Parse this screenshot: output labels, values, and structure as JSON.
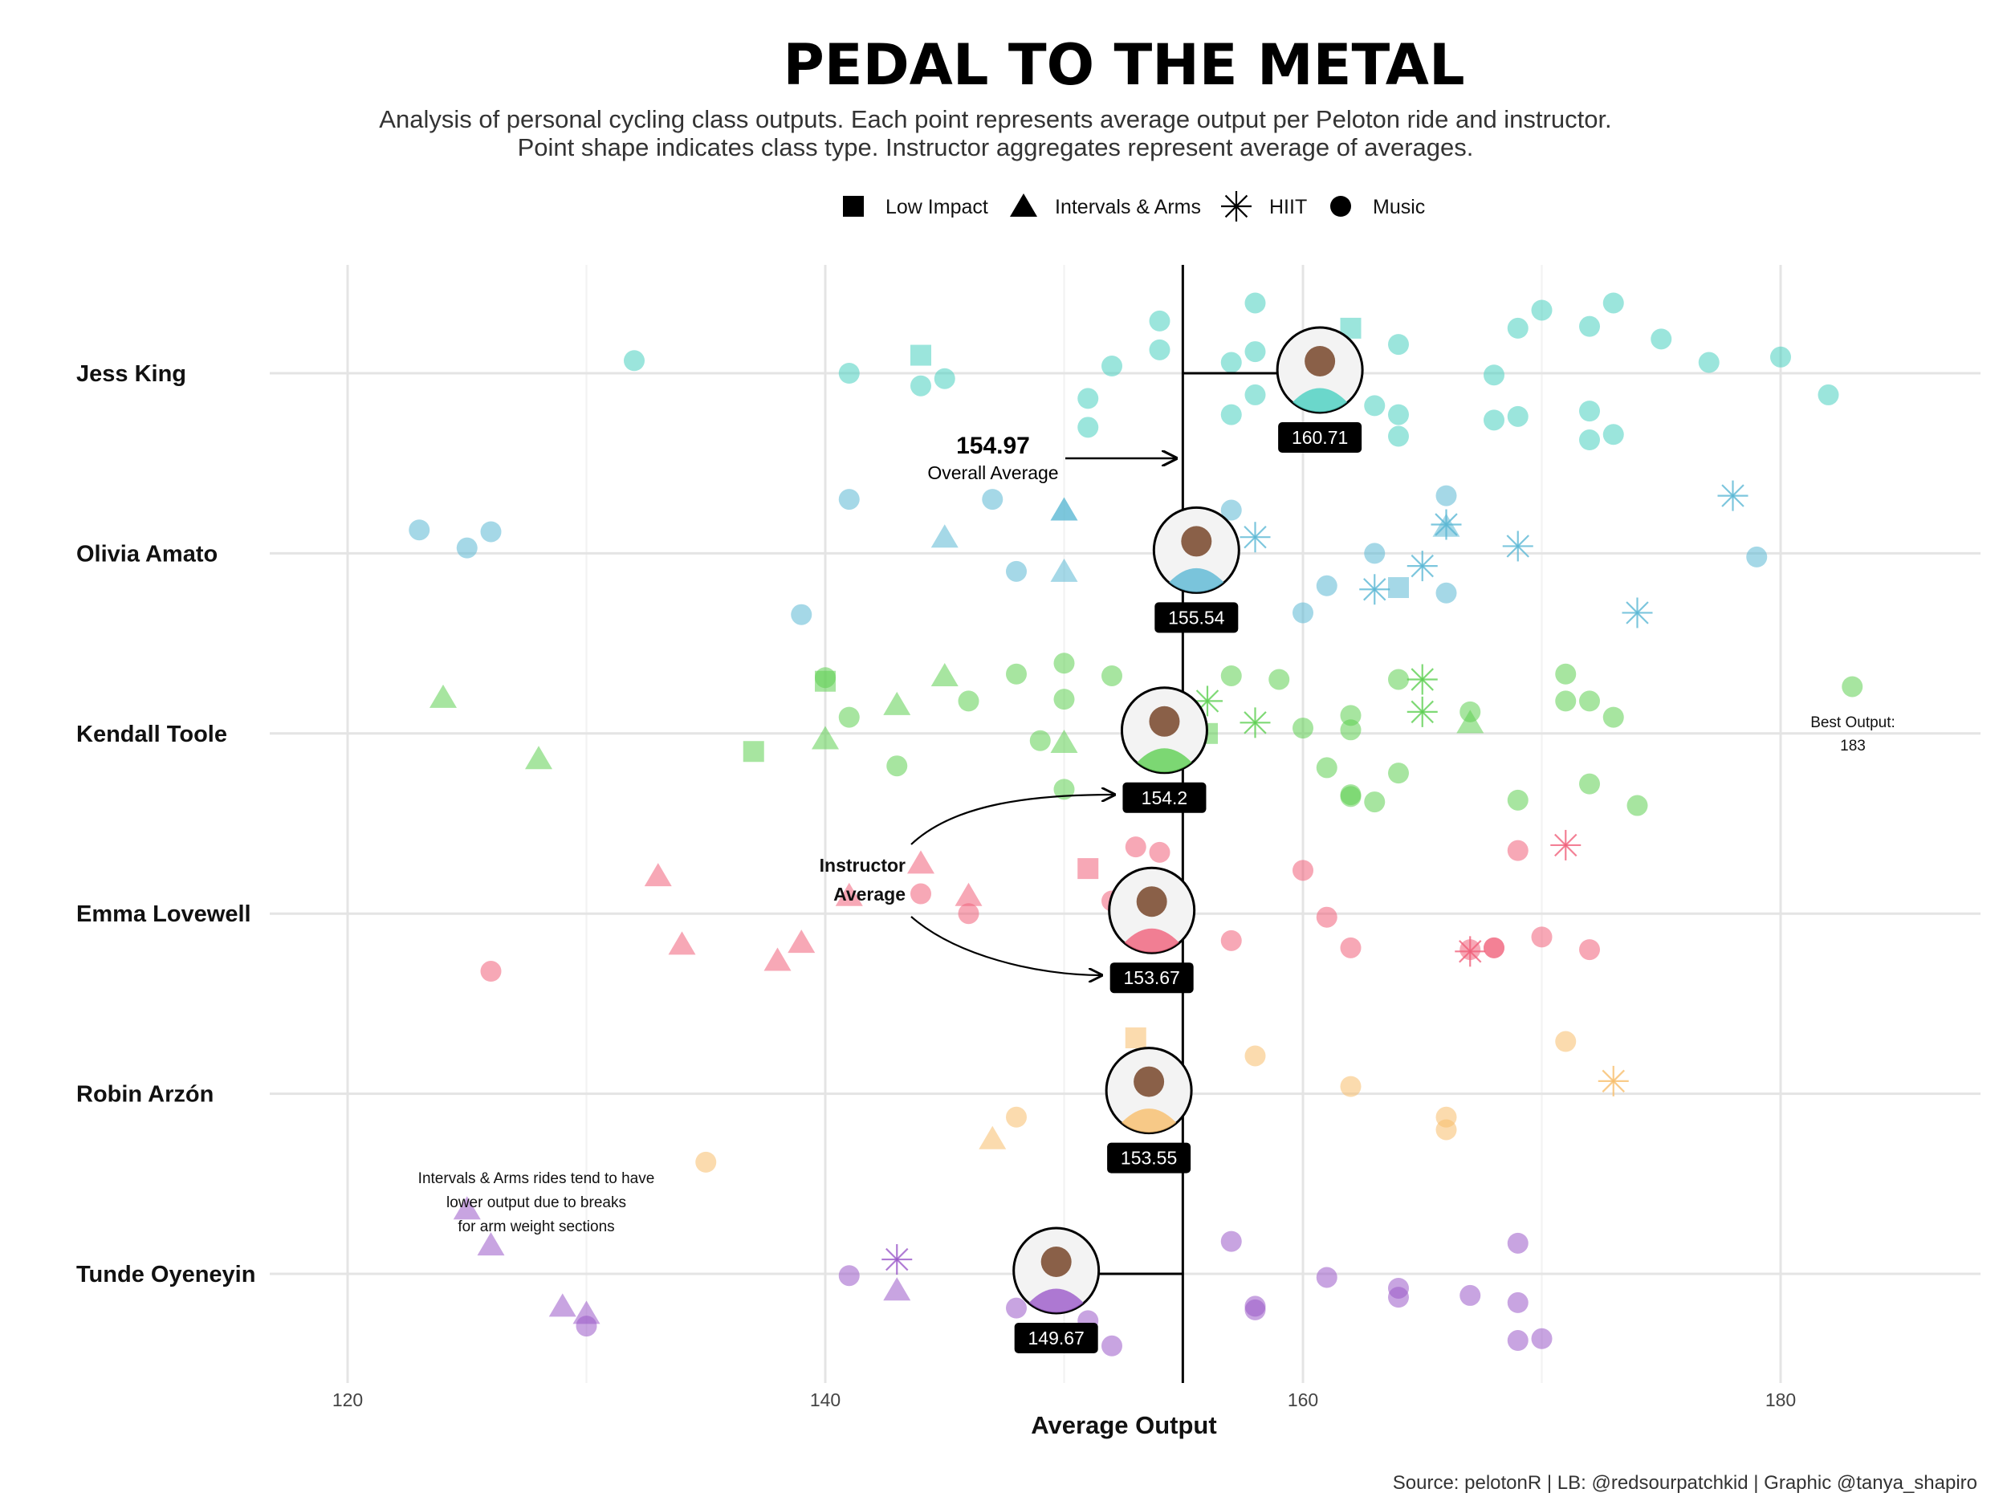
{
  "chart_data": {
    "type": "scatter",
    "title": "PEDAL TO THE METAL",
    "subtitle_lines": [
      "Analysis of personal cycling class outputs. Each point represents average output per Peloton ride and instructor.",
      "Point shape indicates class type. Instructor aggregates represent average of averages."
    ],
    "xlabel": "Average Output",
    "xlim": [
      115,
      189
    ],
    "x_ticks": [
      120,
      140,
      160,
      180
    ],
    "grid": true,
    "legend_position": "top",
    "legend": [
      {
        "shape": "square",
        "label": "Low Impact"
      },
      {
        "shape": "triangle",
        "label": "Intervals & Arms"
      },
      {
        "shape": "asterisk",
        "label": "HIIT"
      },
      {
        "shape": "circle",
        "label": "Music"
      }
    ],
    "overall_average": {
      "value": 154.97,
      "value_label": "154.97",
      "label": "Overall Average"
    },
    "instructor_note": [
      "Instructor",
      "Average"
    ],
    "best_output": {
      "label": "Best Output:",
      "value": "183"
    },
    "annotation": [
      "Intervals & Arms rides tend to have",
      "lower output due to breaks",
      "for arm weight sections"
    ],
    "caption": "Source: pelotonR | LB: @redsourpatchkid | Graphic @tanya_shapiro",
    "series": [
      {
        "name": "Jess King",
        "color": "#48CFC0",
        "avg": 160.71,
        "avg_label": "160.71",
        "points": [
          [
            132,
            0.07,
            "circle"
          ],
          [
            141,
            0,
            "circle"
          ],
          [
            144,
            0.1,
            "square"
          ],
          [
            144,
            -0.07,
            "circle"
          ],
          [
            145,
            -0.03,
            "circle"
          ],
          [
            151,
            -0.14,
            "circle"
          ],
          [
            151,
            -0.3,
            "circle"
          ],
          [
            152,
            0.04,
            "circle"
          ],
          [
            154,
            0.29,
            "circle"
          ],
          [
            154,
            0.13,
            "circle"
          ],
          [
            157,
            0.06,
            "circle"
          ],
          [
            157,
            -0.23,
            "circle"
          ],
          [
            158,
            0.39,
            "circle"
          ],
          [
            158,
            0.12,
            "circle"
          ],
          [
            158,
            -0.12,
            "circle"
          ],
          [
            162,
            0.25,
            "square"
          ],
          [
            163,
            -0.18,
            "circle"
          ],
          [
            164,
            0.16,
            "circle"
          ],
          [
            164,
            -0.23,
            "circle"
          ],
          [
            164,
            -0.35,
            "circle"
          ],
          [
            168,
            -0.01,
            "circle"
          ],
          [
            168,
            -0.26,
            "circle"
          ],
          [
            169,
            0.25,
            "circle"
          ],
          [
            169,
            -0.24,
            "circle"
          ],
          [
            170,
            0.35,
            "circle"
          ],
          [
            172,
            0.26,
            "circle"
          ],
          [
            172,
            -0.21,
            "circle"
          ],
          [
            172,
            -0.37,
            "circle"
          ],
          [
            173,
            0.39,
            "circle"
          ],
          [
            173,
            -0.34,
            "circle"
          ],
          [
            175,
            0.19,
            "circle"
          ],
          [
            177,
            0.06,
            "circle"
          ],
          [
            180,
            0.09,
            "circle"
          ],
          [
            182,
            -0.12,
            "circle"
          ]
        ]
      },
      {
        "name": "Olivia Amato",
        "color": "#5BB8D4",
        "avg": 155.54,
        "avg_label": "155.54",
        "points": [
          [
            123,
            0.13,
            "circle"
          ],
          [
            125,
            0.03,
            "circle"
          ],
          [
            126,
            0.12,
            "circle"
          ],
          [
            139,
            -0.34,
            "circle"
          ],
          [
            141,
            0.3,
            "circle"
          ],
          [
            145,
            0.09,
            "triangle"
          ],
          [
            147,
            0.3,
            "circle"
          ],
          [
            148,
            -0.1,
            "circle"
          ],
          [
            150,
            0.24,
            "triangle"
          ],
          [
            150,
            0.24,
            "triangle"
          ],
          [
            150,
            -0.1,
            "triangle"
          ],
          [
            157,
            0.24,
            "circle"
          ],
          [
            158,
            0.09,
            "asterisk"
          ],
          [
            160,
            -0.33,
            "circle"
          ],
          [
            161,
            -0.18,
            "circle"
          ],
          [
            163,
            0,
            "circle"
          ],
          [
            163,
            -0.2,
            "asterisk"
          ],
          [
            164,
            -0.19,
            "square"
          ],
          [
            165,
            -0.07,
            "asterisk"
          ],
          [
            166,
            0.32,
            "circle"
          ],
          [
            166,
            0.16,
            "asterisk"
          ],
          [
            166,
            0.15,
            "triangle"
          ],
          [
            166,
            -0.22,
            "circle"
          ],
          [
            169,
            0.04,
            "asterisk"
          ],
          [
            174,
            -0.33,
            "asterisk"
          ],
          [
            178,
            0.32,
            "asterisk"
          ],
          [
            179,
            -0.02,
            "circle"
          ]
        ]
      },
      {
        "name": "Kendall Toole",
        "color": "#5ED052",
        "avg": 154.2,
        "avg_label": "154.2",
        "points": [
          [
            124,
            0.2,
            "triangle"
          ],
          [
            128,
            -0.14,
            "triangle"
          ],
          [
            137,
            -0.1,
            "square"
          ],
          [
            140,
            0.31,
            "circle"
          ],
          [
            140,
            0.29,
            "square"
          ],
          [
            140,
            -0.03,
            "triangle"
          ],
          [
            141,
            0.09,
            "circle"
          ],
          [
            143,
            0.16,
            "triangle"
          ],
          [
            143,
            -0.18,
            "circle"
          ],
          [
            145,
            0.32,
            "triangle"
          ],
          [
            146,
            0.18,
            "circle"
          ],
          [
            148,
            0.33,
            "circle"
          ],
          [
            149,
            -0.04,
            "circle"
          ],
          [
            150,
            0.39,
            "circle"
          ],
          [
            150,
            0.19,
            "circle"
          ],
          [
            150,
            -0.05,
            "triangle"
          ],
          [
            150,
            -0.31,
            "circle"
          ],
          [
            152,
            0.32,
            "circle"
          ],
          [
            156,
            0.18,
            "asterisk"
          ],
          [
            156,
            0,
            "square"
          ],
          [
            157,
            0.32,
            "circle"
          ],
          [
            158,
            0.06,
            "asterisk"
          ],
          [
            159,
            0.3,
            "circle"
          ],
          [
            160,
            0.03,
            "circle"
          ],
          [
            161,
            -0.19,
            "circle"
          ],
          [
            162,
            0.1,
            "circle"
          ],
          [
            162,
            0.02,
            "circle"
          ],
          [
            162,
            -0.34,
            "circle"
          ],
          [
            162,
            -0.35,
            "circle"
          ],
          [
            163,
            -0.38,
            "circle"
          ],
          [
            164,
            0.3,
            "circle"
          ],
          [
            164,
            -0.22,
            "circle"
          ],
          [
            165,
            0.3,
            "asterisk"
          ],
          [
            165,
            0.12,
            "asterisk"
          ],
          [
            167,
            0.12,
            "circle"
          ],
          [
            167,
            0.06,
            "triangle"
          ],
          [
            169,
            -0.37,
            "circle"
          ],
          [
            171,
            0.33,
            "circle"
          ],
          [
            171,
            0.18,
            "circle"
          ],
          [
            172,
            0.18,
            "circle"
          ],
          [
            172,
            -0.28,
            "circle"
          ],
          [
            173,
            0.09,
            "circle"
          ],
          [
            174,
            -0.4,
            "circle"
          ],
          [
            183,
            0.26,
            "circle"
          ]
        ]
      },
      {
        "name": "Emma Lovewell",
        "color": "#F0607A",
        "avg": 153.67,
        "avg_label": "153.67",
        "points": [
          [
            126,
            -0.32,
            "circle"
          ],
          [
            133,
            0.21,
            "triangle"
          ],
          [
            134,
            -0.17,
            "triangle"
          ],
          [
            138,
            -0.26,
            "triangle"
          ],
          [
            139,
            -0.16,
            "triangle"
          ],
          [
            141,
            0.1,
            "triangle"
          ],
          [
            144,
            0.28,
            "triangle"
          ],
          [
            144,
            0.11,
            "circle"
          ],
          [
            146,
            0.1,
            "triangle"
          ],
          [
            146,
            0,
            "circle"
          ],
          [
            151,
            0.25,
            "square"
          ],
          [
            152,
            0.07,
            "circle"
          ],
          [
            153,
            0.37,
            "circle"
          ],
          [
            154,
            0.34,
            "circle"
          ],
          [
            157,
            -0.15,
            "circle"
          ],
          [
            160,
            0.24,
            "circle"
          ],
          [
            161,
            -0.02,
            "circle"
          ],
          [
            162,
            -0.19,
            "circle"
          ],
          [
            167,
            -0.21,
            "asterisk"
          ],
          [
            167,
            -0.2,
            "circle"
          ],
          [
            168,
            -0.19,
            "circle"
          ],
          [
            168,
            -0.19,
            "circle"
          ],
          [
            169,
            0.35,
            "circle"
          ],
          [
            170,
            -0.13,
            "circle"
          ],
          [
            171,
            0.38,
            "asterisk"
          ],
          [
            172,
            -0.2,
            "circle"
          ]
        ]
      },
      {
        "name": "Robin Arzón",
        "color": "#F8BE6B",
        "avg": 153.55,
        "avg_label": "153.55",
        "points": [
          [
            135,
            -0.38,
            "circle"
          ],
          [
            147,
            -0.25,
            "triangle"
          ],
          [
            148,
            -0.13,
            "circle"
          ],
          [
            153,
            0.31,
            "square"
          ],
          [
            158,
            0.21,
            "circle"
          ],
          [
            162,
            0.04,
            "circle"
          ],
          [
            166,
            -0.13,
            "circle"
          ],
          [
            166,
            -0.2,
            "circle"
          ],
          [
            171,
            0.29,
            "circle"
          ],
          [
            173,
            0.07,
            "asterisk"
          ]
        ]
      },
      {
        "name": "Tunde Oyeneyin",
        "color": "#9B59C9",
        "avg": 149.67,
        "avg_label": "149.67",
        "points": [
          [
            125,
            0.36,
            "triangle"
          ],
          [
            126,
            0.16,
            "triangle"
          ],
          [
            129,
            -0.18,
            "triangle"
          ],
          [
            130,
            -0.22,
            "triangle"
          ],
          [
            130,
            -0.29,
            "circle"
          ],
          [
            141,
            -0.01,
            "circle"
          ],
          [
            143,
            0.08,
            "asterisk"
          ],
          [
            143,
            -0.09,
            "triangle"
          ],
          [
            148,
            -0.19,
            "circle"
          ],
          [
            151,
            -0.26,
            "circle"
          ],
          [
            152,
            -0.4,
            "circle"
          ],
          [
            157,
            0.18,
            "circle"
          ],
          [
            158,
            -0.18,
            "circle"
          ],
          [
            158,
            -0.2,
            "circle"
          ],
          [
            161,
            -0.02,
            "circle"
          ],
          [
            164,
            -0.08,
            "circle"
          ],
          [
            164,
            -0.13,
            "circle"
          ],
          [
            167,
            -0.12,
            "circle"
          ],
          [
            169,
            0.17,
            "circle"
          ],
          [
            169,
            -0.16,
            "circle"
          ],
          [
            169,
            -0.37,
            "circle"
          ],
          [
            170,
            -0.36,
            "circle"
          ]
        ]
      }
    ]
  }
}
